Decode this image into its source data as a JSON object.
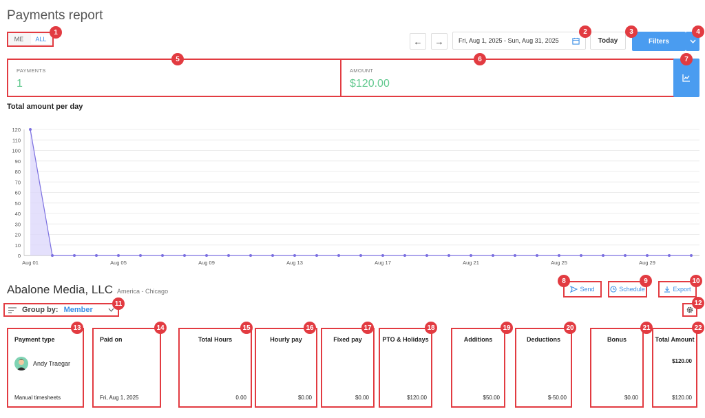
{
  "page": {
    "title": "Payments report"
  },
  "toggle": {
    "me": "ME",
    "all": "ALL"
  },
  "date_range": {
    "label": "Fri, Aug 1, 2025 - Sun, Aug 31, 2025"
  },
  "today_label": "Today",
  "filters_label": "Filters",
  "nav": {
    "prev": "←",
    "next": "→"
  },
  "stats": {
    "payments_label": "PAYMENTS",
    "payments_value": "1",
    "amount_label": "AMOUNT",
    "amount_value": "$120.00"
  },
  "chart_title": "Total amount per day",
  "chart_data": {
    "type": "area",
    "ylim": [
      0,
      120
    ],
    "yticks": [
      "0",
      "10",
      "20",
      "30",
      "40",
      "50",
      "60",
      "70",
      "80",
      "90",
      "100",
      "110",
      "120"
    ],
    "xticks": [
      "Aug 01",
      "Aug 05",
      "Aug 09",
      "Aug 13",
      "Aug 17",
      "Aug 21",
      "Aug 25",
      "Aug 29"
    ],
    "x": [
      1,
      2,
      3,
      4,
      5,
      6,
      7,
      8,
      9,
      10,
      11,
      12,
      13,
      14,
      15,
      16,
      17,
      18,
      19,
      20,
      21,
      22,
      23,
      24,
      25,
      26,
      27,
      28,
      29,
      30,
      31
    ],
    "values": [
      120,
      0,
      0,
      0,
      0,
      0,
      0,
      0,
      0,
      0,
      0,
      0,
      0,
      0,
      0,
      0,
      0,
      0,
      0,
      0,
      0,
      0,
      0,
      0,
      0,
      0,
      0,
      0,
      0,
      0,
      0
    ],
    "colors": {
      "line": "#7b6fe0",
      "fill": "#ddd8fb"
    }
  },
  "org": {
    "name": "Abalone Media, LLC",
    "timezone": "America - Chicago"
  },
  "actions": {
    "send": "Send",
    "schedule": "Schedule",
    "export": "Export"
  },
  "group_by": {
    "label": "Group by:",
    "value": "Member"
  },
  "table": {
    "headers": [
      "Payment type",
      "Paid on",
      "Total Hours",
      "Hourly pay",
      "Fixed pay",
      "PTO & Holidays",
      "Additions",
      "Deductions",
      "Bonus",
      "Total Amount"
    ],
    "member": "Andy Traegar",
    "member_total": "$120.00",
    "row": [
      "Manual timesheets",
      "Fri, Aug 1, 2025",
      "0.00",
      "$0.00",
      "$0.00",
      "$120.00",
      "$50.00",
      "$-50.00",
      "$0.00",
      "$120.00"
    ]
  },
  "badges": [
    "1",
    "2",
    "3",
    "4",
    "5",
    "6",
    "7",
    "8",
    "9",
    "10",
    "11",
    "12",
    "13",
    "14",
    "15",
    "16",
    "17",
    "18",
    "19",
    "20",
    "21",
    "22"
  ]
}
